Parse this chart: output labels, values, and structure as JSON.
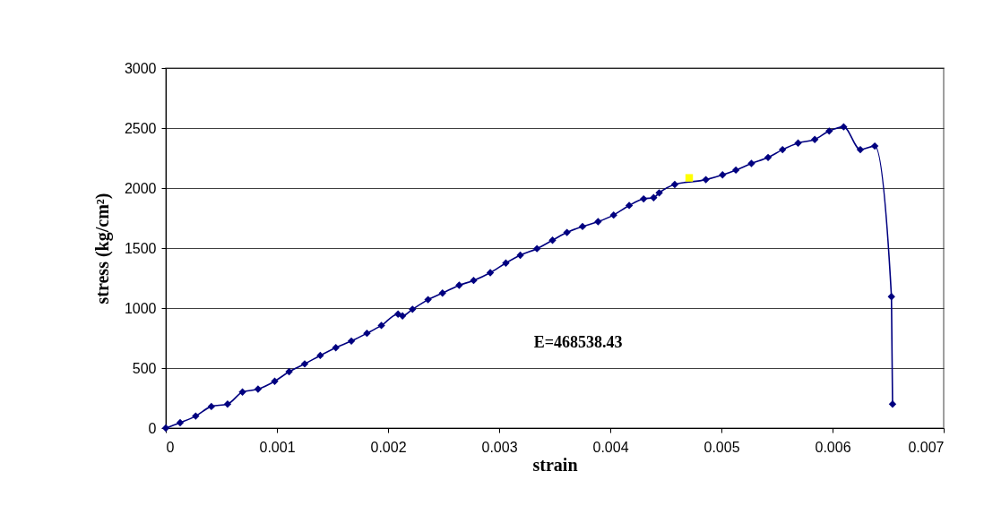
{
  "chart_data": {
    "type": "line",
    "xlabel": "strain",
    "ylabel": "stress (kg/cm²)",
    "xlim": [
      0,
      0.007
    ],
    "xticks": [
      0,
      0.001,
      0.002,
      0.003,
      0.004,
      0.005,
      0.006,
      0.007
    ],
    "ylim": [
      0,
      3000
    ],
    "yticks": [
      0,
      500,
      1000,
      1500,
      2000,
      2500,
      3000
    ],
    "grid": "y",
    "line_style": "solid",
    "annotations": [
      "E=468538.43"
    ],
    "series": [
      {
        "type": "line",
        "marker": "diamond",
        "color": "#000080",
        "x": [
          0,
          0.000129,
          0.000269,
          0.00041,
          0.000556,
          0.00069,
          0.00083,
          0.00098,
          0.00111,
          0.00125,
          0.00139,
          0.00153,
          0.00167,
          0.00181,
          0.00194,
          0.00209,
          0.00213,
          0.00222,
          0.00236,
          0.00249,
          0.00264,
          0.00277,
          0.00292,
          0.00306,
          0.00319,
          0.00334,
          0.00348,
          0.00361,
          0.00375,
          0.00389,
          0.00403,
          0.00417,
          0.0043,
          0.00439,
          0.00444,
          0.00458,
          0.00486,
          0.00501,
          0.00513,
          0.00527,
          0.00542,
          0.00555,
          0.00569,
          0.00584,
          0.00597,
          0.0061,
          0.00625,
          0.00638,
          0.00653,
          0.00654
        ],
        "values": [
          0,
          45,
          100,
          180,
          200,
          300,
          325,
          390,
          470,
          535,
          605,
          670,
          725,
          790,
          855,
          950,
          935,
          990,
          1070,
          1125,
          1190,
          1230,
          1295,
          1375,
          1440,
          1495,
          1565,
          1630,
          1680,
          1720,
          1775,
          1855,
          1910,
          1920,
          1960,
          2030,
          2070,
          2110,
          2150,
          2205,
          2255,
          2320,
          2375,
          2405,
          2475,
          2510,
          2320,
          2350,
          1095,
          200
        ]
      },
      {
        "type": "scatter",
        "marker": "square",
        "color": "#ffff00",
        "x": [
          0.00471
        ],
        "values": [
          2085
        ]
      }
    ]
  }
}
